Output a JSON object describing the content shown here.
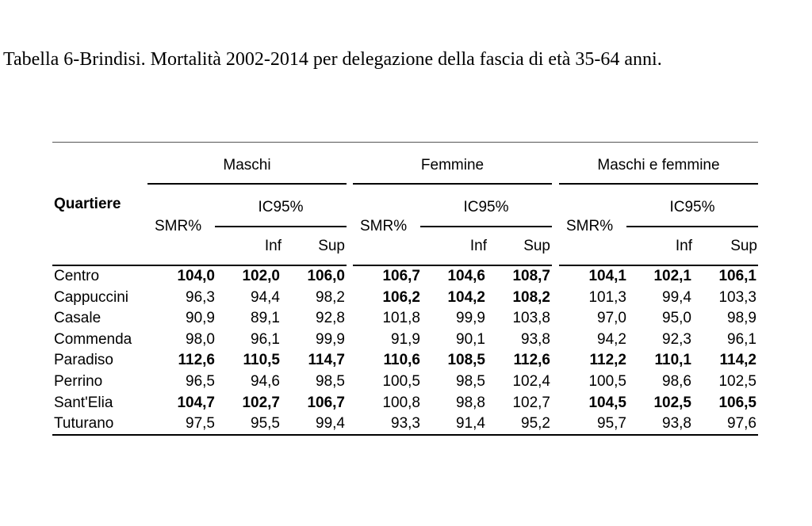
{
  "caption": "Tabella 6-Brindisi. Mortalità 2002-2014 per delegazione della fascia di età 35-64 anni.",
  "table": {
    "row_header": "Quartiere",
    "groups": [
      "Maschi",
      "Femmine",
      "Maschi e femmine"
    ],
    "smr_label": "SMR%",
    "ic_label": "IC95%",
    "inf_label": "Inf",
    "sup_label": "Sup",
    "rows": [
      {
        "name": "Centro",
        "cells": [
          "104,0",
          "102,0",
          "106,0",
          "106,7",
          "104,6",
          "108,7",
          "104,1",
          "102,1",
          "106,1"
        ],
        "bold": [
          true,
          true,
          true,
          true,
          true,
          true,
          true,
          true,
          true
        ]
      },
      {
        "name": "Cappuccini",
        "cells": [
          "96,3",
          "94,4",
          "98,2",
          "106,2",
          "104,2",
          "108,2",
          "101,3",
          "99,4",
          "103,3"
        ],
        "bold": [
          false,
          false,
          false,
          true,
          true,
          true,
          false,
          false,
          false
        ]
      },
      {
        "name": "Casale",
        "cells": [
          "90,9",
          "89,1",
          "92,8",
          "101,8",
          "99,9",
          "103,8",
          "97,0",
          "95,0",
          "98,9"
        ],
        "bold": [
          false,
          false,
          false,
          false,
          false,
          false,
          false,
          false,
          false
        ]
      },
      {
        "name": "Commenda",
        "cells": [
          "98,0",
          "96,1",
          "99,9",
          "91,9",
          "90,1",
          "93,8",
          "94,2",
          "92,3",
          "96,1"
        ],
        "bold": [
          false,
          false,
          false,
          false,
          false,
          false,
          false,
          false,
          false
        ]
      },
      {
        "name": "Paradiso",
        "cells": [
          "112,6",
          "110,5",
          "114,7",
          "110,6",
          "108,5",
          "112,6",
          "112,2",
          "110,1",
          "114,2"
        ],
        "bold": [
          true,
          true,
          true,
          true,
          true,
          true,
          true,
          true,
          true
        ]
      },
      {
        "name": "Perrino",
        "cells": [
          "96,5",
          "94,6",
          "98,5",
          "100,5",
          "98,5",
          "102,4",
          "100,5",
          "98,6",
          "102,5"
        ],
        "bold": [
          false,
          false,
          false,
          false,
          false,
          false,
          false,
          false,
          false
        ]
      },
      {
        "name": "Sant'Elia",
        "cells": [
          "104,7",
          "102,7",
          "106,7",
          "100,8",
          "98,8",
          "102,7",
          "104,5",
          "102,5",
          "106,5"
        ],
        "bold": [
          true,
          true,
          true,
          false,
          false,
          false,
          true,
          true,
          true
        ]
      },
      {
        "name": "Tuturano",
        "cells": [
          "97,5",
          "95,5",
          "99,4",
          "93,3",
          "91,4",
          "95,2",
          "95,7",
          "93,8",
          "97,6"
        ],
        "bold": [
          false,
          false,
          false,
          false,
          false,
          false,
          false,
          false,
          false
        ]
      }
    ]
  }
}
